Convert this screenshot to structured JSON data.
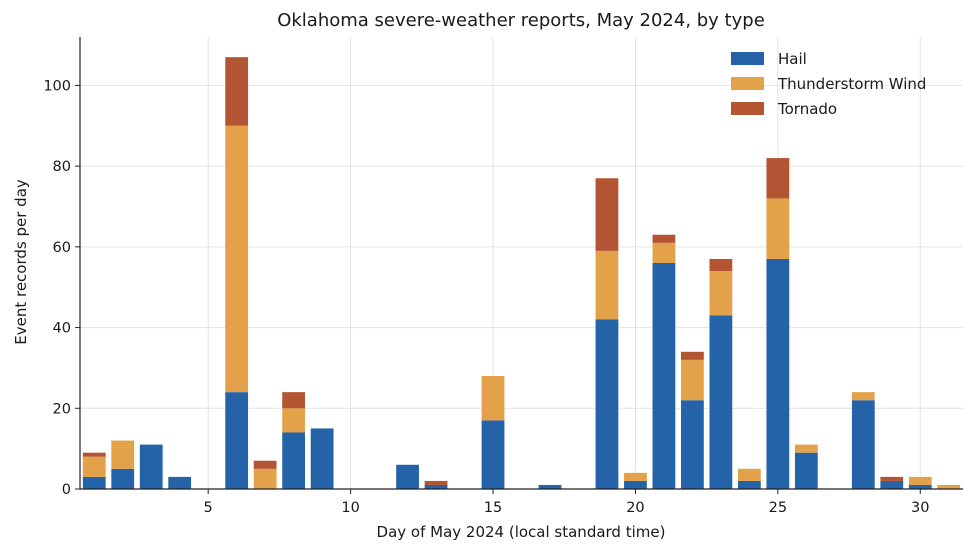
{
  "chart_data": {
    "type": "bar",
    "stacked": true,
    "title": "Oklahoma severe-weather reports, May 2024, by type",
    "xlabel": "Day of May 2024 (local standard time)",
    "ylabel": "Event records per day",
    "xlim": [
      0.5,
      31.5
    ],
    "ylim": [
      0,
      112
    ],
    "xticks": [
      5,
      10,
      15,
      20,
      25,
      30
    ],
    "yticks": [
      0,
      20,
      40,
      60,
      80,
      100
    ],
    "grid": true,
    "legend_position": "top-right",
    "x": [
      1,
      2,
      3,
      4,
      5,
      6,
      7,
      8,
      9,
      10,
      11,
      12,
      13,
      14,
      15,
      16,
      17,
      18,
      19,
      20,
      21,
      22,
      23,
      24,
      25,
      26,
      27,
      28,
      29,
      30,
      31
    ],
    "series": [
      {
        "name": "Hail",
        "color": "#2563a8",
        "values": [
          3,
          5,
          11,
          3,
          0,
          24,
          0,
          14,
          15,
          0,
          0,
          6,
          1,
          0,
          17,
          0,
          1,
          0,
          42,
          2,
          56,
          22,
          43,
          2,
          57,
          9,
          0,
          22,
          2,
          1,
          0
        ]
      },
      {
        "name": "Thunderstorm Wind",
        "color": "#e3a24a",
        "values": [
          5,
          7,
          0,
          0,
          0,
          66,
          5,
          6,
          0,
          0,
          0,
          0,
          0,
          0,
          11,
          0,
          0,
          0,
          17,
          2,
          5,
          10,
          11,
          3,
          15,
          2,
          0,
          2,
          0,
          2,
          1
        ]
      },
      {
        "name": "Tornado",
        "color": "#b35532",
        "values": [
          1,
          0,
          0,
          0,
          0,
          17,
          2,
          4,
          0,
          0,
          0,
          0,
          1,
          0,
          0,
          0,
          0,
          0,
          18,
          0,
          2,
          2,
          3,
          0,
          10,
          0,
          0,
          0,
          1,
          0,
          0
        ]
      }
    ]
  }
}
